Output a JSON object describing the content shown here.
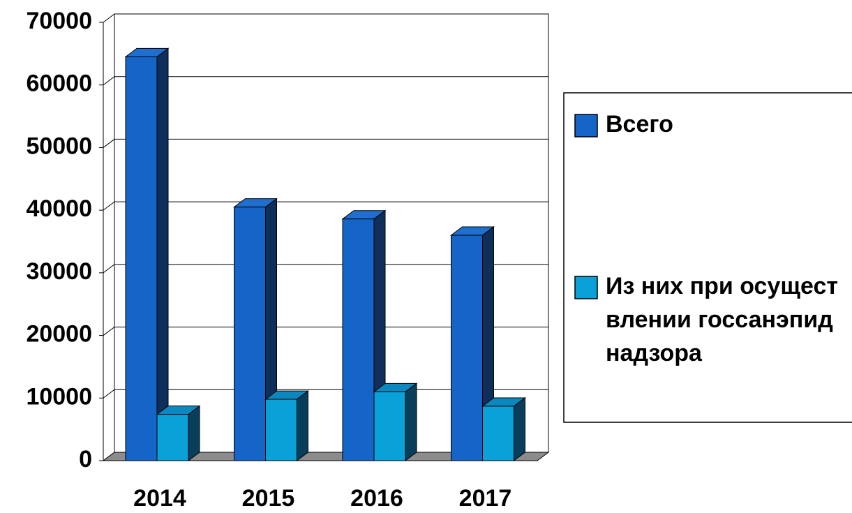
{
  "chart_data": {
    "type": "bar3d",
    "categories": [
      "2014",
      "2015",
      "2016",
      "2017"
    ],
    "series": [
      {
        "name": "Всего",
        "color": "#1565c8",
        "values": [
          64500,
          40500,
          38600,
          36000
        ]
      },
      {
        "name": "Из них при осуществлении госсанэпиднадзора",
        "color": "#0aa0d8",
        "values": [
          7400,
          9800,
          11000,
          8700
        ]
      }
    ],
    "ylim": [
      0,
      70000
    ],
    "yticks": [
      0,
      10000,
      20000,
      30000,
      40000,
      50000,
      60000,
      70000
    ],
    "grid": true,
    "legend": "right"
  }
}
